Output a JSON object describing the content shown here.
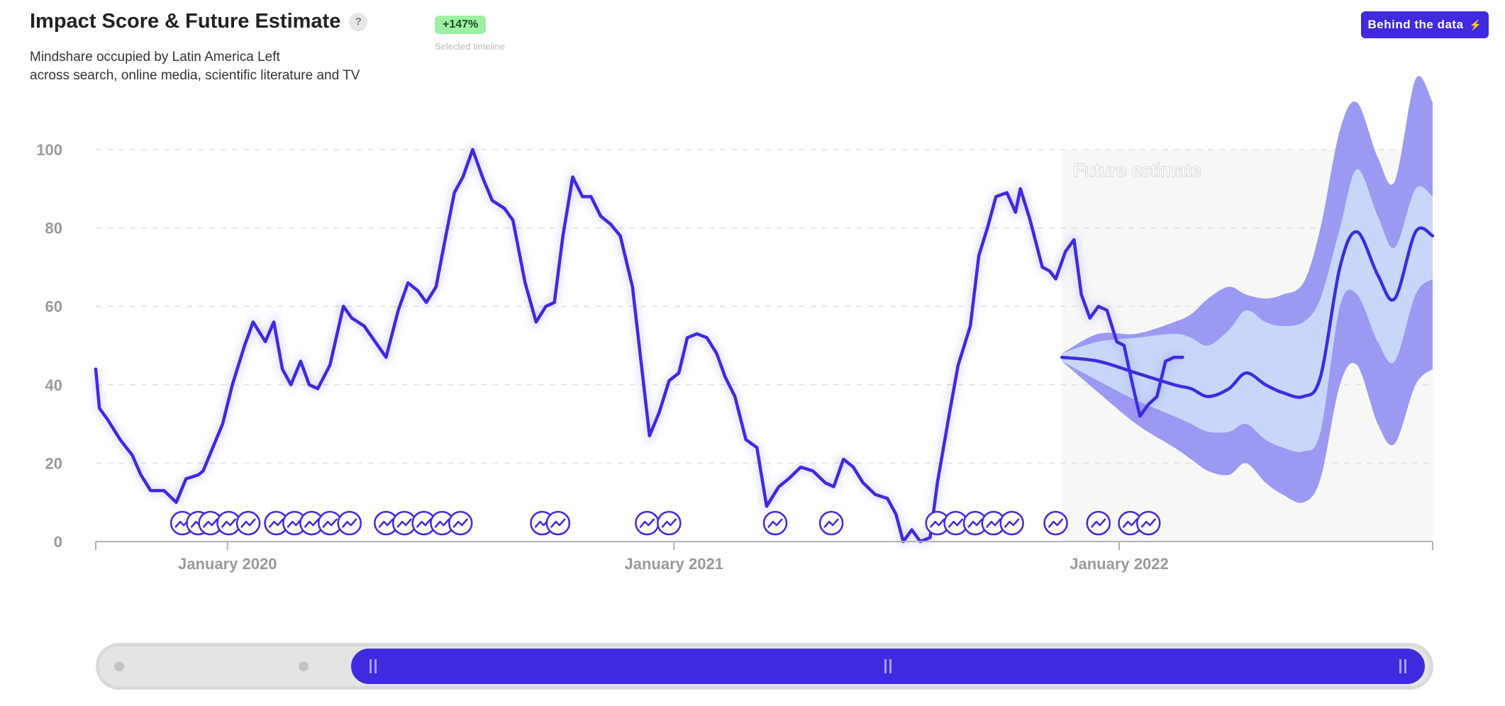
{
  "header": {
    "title": "Impact Score & Future Estimate",
    "help_label": "?",
    "subtitle_line1": "Mindshare occupied by Latin America Left",
    "subtitle_line2": "across search, online media, scientific literature and TV",
    "badge": "+147%",
    "badge_caption": "Selected timeline",
    "button_label": "Behind the data",
    "button_icon": "lightning-icon"
  },
  "colors": {
    "line": "#3f2ae0",
    "band_outer": "#9c99f2",
    "band_inner": "#c8d6fa",
    "forecast_bg": "#f7f7f7",
    "grid": "#e0e0e0",
    "axis_text": "#9a9a9a"
  },
  "chart_data": {
    "type": "line",
    "title": "",
    "xlabel": "",
    "ylabel": "",
    "ylim": [
      0,
      100
    ],
    "yticks": [
      0,
      20,
      40,
      60,
      80,
      100
    ],
    "grid": "horizontal dashed",
    "xticks": [
      {
        "label": "January 2020",
        "date": "2020-01-01"
      },
      {
        "label": "January 2021",
        "date": "2021-01-01"
      },
      {
        "label": "January 2022",
        "date": "2022-01-01"
      }
    ],
    "x_start": "2019-09-15",
    "x_end": "2022-09-15",
    "forecast_start": "2021-11-15",
    "forecast_label": "Future estimate",
    "series": [
      {
        "name": "",
        "points": [
          [
            "2019-09-15",
            44
          ],
          [
            "2019-09-18",
            34
          ],
          [
            "2019-09-25",
            31
          ],
          [
            "2019-10-05",
            26
          ],
          [
            "2019-10-15",
            22
          ],
          [
            "2019-10-22",
            17
          ],
          [
            "2019-10-30",
            13
          ],
          [
            "2019-11-10",
            13
          ],
          [
            "2019-11-20",
            10
          ],
          [
            "2019-11-28",
            16
          ],
          [
            "2019-12-08",
            17
          ],
          [
            "2019-12-12",
            18
          ],
          [
            "2019-12-20",
            24
          ],
          [
            "2019-12-28",
            30
          ],
          [
            "2020-01-05",
            40
          ],
          [
            "2020-01-15",
            50
          ],
          [
            "2020-01-22",
            56
          ],
          [
            "2020-02-01",
            51
          ],
          [
            "2020-02-08",
            56
          ],
          [
            "2020-02-15",
            44
          ],
          [
            "2020-02-22",
            40
          ],
          [
            "2020-03-01",
            46
          ],
          [
            "2020-03-08",
            40
          ],
          [
            "2020-03-15",
            39
          ],
          [
            "2020-03-25",
            45
          ],
          [
            "2020-04-05",
            60
          ],
          [
            "2020-04-12",
            57
          ],
          [
            "2020-04-22",
            55
          ],
          [
            "2020-05-01",
            51
          ],
          [
            "2020-05-10",
            47
          ],
          [
            "2020-05-20",
            59
          ],
          [
            "2020-05-28",
            66
          ],
          [
            "2020-06-05",
            64
          ],
          [
            "2020-06-12",
            61
          ],
          [
            "2020-06-20",
            65
          ],
          [
            "2020-06-28",
            78
          ],
          [
            "2020-07-05",
            89
          ],
          [
            "2020-07-12",
            93
          ],
          [
            "2020-07-20",
            100
          ],
          [
            "2020-07-28",
            93
          ],
          [
            "2020-08-05",
            87
          ],
          [
            "2020-08-15",
            85
          ],
          [
            "2020-08-22",
            82
          ],
          [
            "2020-09-01",
            66
          ],
          [
            "2020-09-10",
            56
          ],
          [
            "2020-09-18",
            60
          ],
          [
            "2020-09-25",
            61
          ],
          [
            "2020-10-02",
            78
          ],
          [
            "2020-10-10",
            93
          ],
          [
            "2020-10-18",
            88
          ],
          [
            "2020-10-25",
            88
          ],
          [
            "2020-11-02",
            83
          ],
          [
            "2020-11-10",
            81
          ],
          [
            "2020-11-18",
            78
          ],
          [
            "2020-11-28",
            65
          ],
          [
            "2020-12-05",
            46
          ],
          [
            "2020-12-12",
            27
          ],
          [
            "2020-12-20",
            33
          ],
          [
            "2020-12-28",
            41
          ],
          [
            "2021-01-05",
            43
          ],
          [
            "2021-01-12",
            52
          ],
          [
            "2021-01-20",
            53
          ],
          [
            "2021-01-28",
            52
          ],
          [
            "2021-02-05",
            48
          ],
          [
            "2021-02-12",
            42
          ],
          [
            "2021-02-20",
            37
          ],
          [
            "2021-03-01",
            26
          ],
          [
            "2021-03-10",
            24
          ],
          [
            "2021-03-18",
            9
          ],
          [
            "2021-03-28",
            14
          ],
          [
            "2021-04-05",
            16
          ],
          [
            "2021-04-15",
            19
          ],
          [
            "2021-04-25",
            18
          ],
          [
            "2021-05-05",
            15
          ],
          [
            "2021-05-12",
            14
          ],
          [
            "2021-05-20",
            21
          ],
          [
            "2021-05-28",
            19
          ],
          [
            "2021-06-05",
            15
          ],
          [
            "2021-06-15",
            12
          ],
          [
            "2021-06-25",
            11
          ],
          [
            "2021-07-02",
            7
          ],
          [
            "2021-07-08",
            0
          ],
          [
            "2021-07-15",
            3
          ],
          [
            "2021-07-22",
            0
          ],
          [
            "2021-07-30",
            1
          ],
          [
            "2021-08-05",
            15
          ],
          [
            "2021-08-15",
            33
          ],
          [
            "2021-08-22",
            45
          ],
          [
            "2021-09-01",
            55
          ],
          [
            "2021-09-08",
            73
          ],
          [
            "2021-09-15",
            80
          ],
          [
            "2021-09-22",
            88
          ],
          [
            "2021-10-01",
            89
          ],
          [
            "2021-10-08",
            84
          ],
          [
            "2021-10-12",
            90
          ],
          [
            "2021-10-20",
            82
          ],
          [
            "2021-10-30",
            70
          ],
          [
            "2021-11-05",
            69
          ],
          [
            "2021-11-10",
            67
          ],
          [
            "2021-11-18",
            74
          ],
          [
            "2021-11-25",
            77
          ],
          [
            "2021-12-01",
            63
          ],
          [
            "2021-12-08",
            57
          ],
          [
            "2021-12-15",
            60
          ],
          [
            "2021-12-22",
            59
          ],
          [
            "2021-12-30",
            51
          ],
          [
            "2022-01-05",
            50
          ],
          [
            "2022-01-12",
            40
          ],
          [
            "2022-01-18",
            32
          ],
          [
            "2022-01-25",
            35
          ],
          [
            "2022-02-01",
            37
          ],
          [
            "2022-02-08",
            46
          ],
          [
            "2022-02-15",
            47
          ],
          [
            "2022-02-22",
            47
          ]
        ]
      },
      {
        "name": "",
        "points": [
          [
            "2021-11-15",
            47
          ],
          [
            "2021-12-15",
            46
          ],
          [
            "2022-01-15",
            43
          ],
          [
            "2022-02-15",
            40
          ],
          [
            "2022-03-01",
            39
          ],
          [
            "2022-03-15",
            37
          ],
          [
            "2022-04-01",
            39
          ],
          [
            "2022-04-15",
            43
          ],
          [
            "2022-05-01",
            40
          ],
          [
            "2022-05-15",
            38
          ],
          [
            "2022-06-01",
            37
          ],
          [
            "2022-06-15",
            42
          ],
          [
            "2022-07-01",
            70
          ],
          [
            "2022-07-15",
            79
          ],
          [
            "2022-08-01",
            68
          ],
          [
            "2022-08-15",
            62
          ],
          [
            "2022-09-01",
            79
          ],
          [
            "2022-09-15",
            78
          ]
        ]
      }
    ],
    "bands": {
      "inner_upper": [
        48,
        51,
        52,
        53,
        52,
        50,
        54,
        59,
        56,
        55,
        56,
        62,
        80,
        95,
        83,
        75,
        90,
        88
      ],
      "inner_lower": [
        46,
        41,
        36,
        32,
        30,
        28,
        28,
        30,
        26,
        24,
        23,
        28,
        60,
        63,
        51,
        46,
        63,
        67
      ],
      "outer_upper": [
        48,
        53,
        53,
        56,
        58,
        62,
        65,
        63,
        62,
        63,
        66,
        80,
        105,
        112,
        98,
        92,
        118,
        112
      ],
      "outer_lower": [
        46,
        38,
        30,
        24,
        21,
        18,
        17,
        20,
        15,
        12,
        10,
        16,
        40,
        45,
        30,
        25,
        40,
        44
      ]
    },
    "event_markers": [
      "2019-11-25",
      "2019-12-08",
      "2019-12-18",
      "2020-01-02",
      "2020-01-18",
      "2020-02-10",
      "2020-02-25",
      "2020-03-10",
      "2020-03-25",
      "2020-04-10",
      "2020-05-10",
      "2020-05-25",
      "2020-06-10",
      "2020-06-25",
      "2020-07-10",
      "2020-09-15",
      "2020-09-28",
      "2020-12-10",
      "2020-12-28",
      "2021-03-25",
      "2021-05-10",
      "2021-08-05",
      "2021-08-20",
      "2021-09-05",
      "2021-09-20",
      "2021-10-05",
      "2021-11-10",
      "2021-12-15",
      "2022-01-10",
      "2022-01-25"
    ]
  },
  "scrollbar": {
    "left_dot_icon": "handle-dot-icon",
    "grip_icon": "grip-icon"
  }
}
